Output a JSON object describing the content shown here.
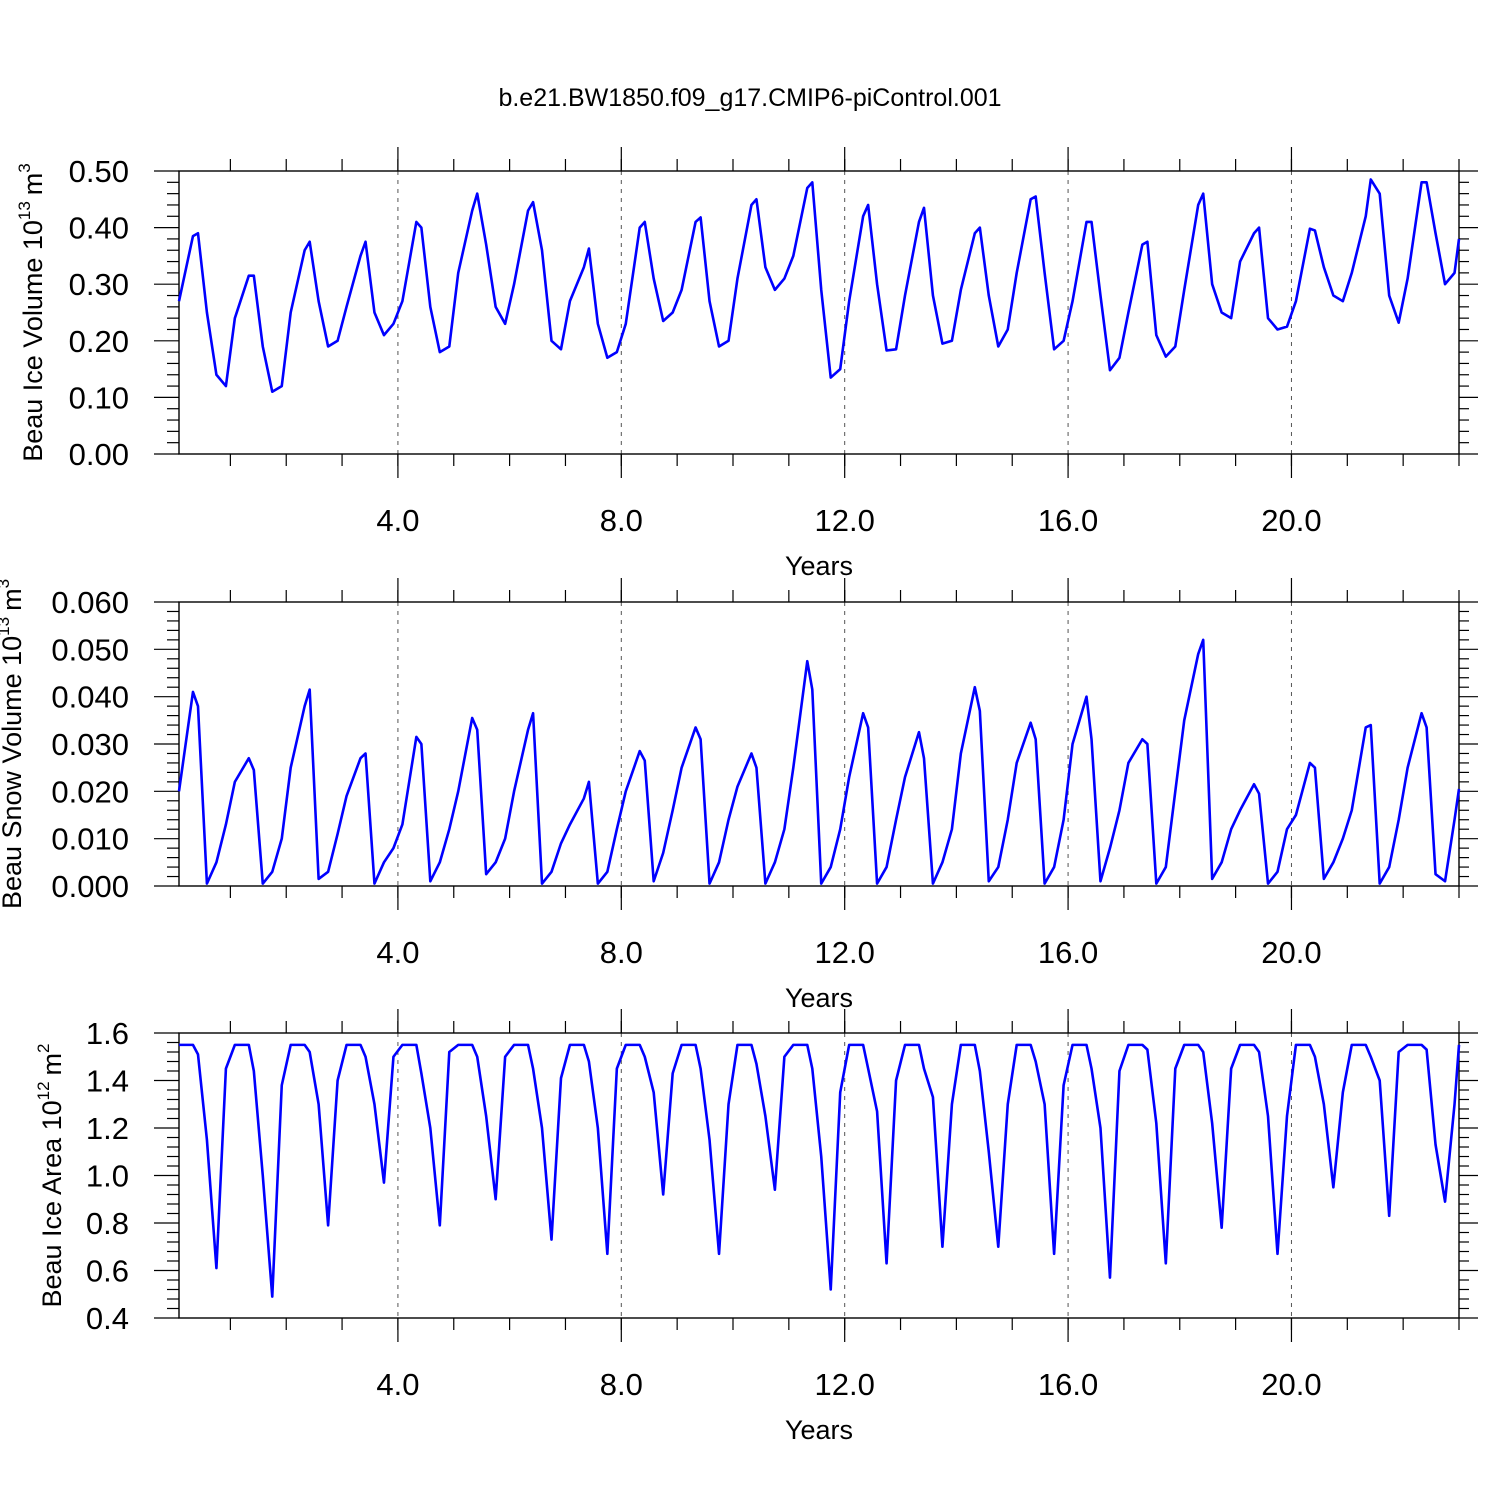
{
  "chart_data": [
    {
      "type": "line",
      "title": "b.e21.BW1850.f09_g17.CMIP6-piControl.001",
      "ylabel": [
        "Beau Ice Volume 10",
        "13",
        "m",
        "3"
      ],
      "xlabel": "Years",
      "color": "#0000ff",
      "xlim": [
        0.08,
        23
      ],
      "ylim": [
        0,
        0.5
      ],
      "xticks": [
        {
          "value": 4,
          "label": "4.0"
        },
        {
          "value": 8,
          "label": "8.0"
        },
        {
          "value": 12,
          "label": "12.0"
        },
        {
          "value": 16,
          "label": "16.0"
        },
        {
          "value": 20,
          "label": "20.0"
        }
      ],
      "yticks": [
        {
          "value": 0,
          "label": "0.00"
        },
        {
          "value": 0.1,
          "label": "0.10"
        },
        {
          "value": 0.2,
          "label": "0.20"
        },
        {
          "value": 0.3,
          "label": "0.30"
        },
        {
          "value": 0.4,
          "label": "0.40"
        },
        {
          "value": 0.5,
          "label": "0.50"
        }
      ],
      "grid": "x",
      "x": [
        0.08,
        0.33,
        0.42,
        0.58,
        0.75,
        0.92,
        1.08,
        1.33,
        1.42,
        1.58,
        1.75,
        1.92,
        2.08,
        2.33,
        2.42,
        2.58,
        2.75,
        2.92,
        3.08,
        3.33,
        3.42,
        3.58,
        3.75,
        3.92,
        4.08,
        4.33,
        4.42,
        4.58,
        4.75,
        4.92,
        5.08,
        5.33,
        5.42,
        5.58,
        5.75,
        5.92,
        6.08,
        6.33,
        6.42,
        6.58,
        6.75,
        6.92,
        7.08,
        7.33,
        7.42,
        7.58,
        7.75,
        7.92,
        8.08,
        8.33,
        8.42,
        8.58,
        8.75,
        8.92,
        9.08,
        9.33,
        9.42,
        9.58,
        9.75,
        9.92,
        10.08,
        10.33,
        10.42,
        10.58,
        10.75,
        10.92,
        11.08,
        11.33,
        11.42,
        11.58,
        11.75,
        11.92,
        12.08,
        12.33,
        12.42,
        12.58,
        12.75,
        12.92,
        13.08,
        13.33,
        13.42,
        13.58,
        13.75,
        13.92,
        14.08,
        14.33,
        14.42,
        14.58,
        14.75,
        14.92,
        15.08,
        15.33,
        15.42,
        15.58,
        15.75,
        15.92,
        16.08,
        16.33,
        16.42,
        16.58,
        16.75,
        16.92,
        17.08,
        17.33,
        17.42,
        17.58,
        17.75,
        17.92,
        18.08,
        18.33,
        18.42,
        18.58,
        18.75,
        18.92,
        19.08,
        19.33,
        19.42,
        19.58,
        19.75,
        19.92,
        20.08,
        20.33,
        20.42,
        20.58,
        20.75,
        20.92,
        21.08,
        21.33,
        21.42,
        21.58,
        21.75,
        21.92,
        22.08,
        22.33,
        22.42,
        22.58,
        22.75,
        22.92,
        23
      ],
      "values": [
        0.27,
        0.385,
        0.39,
        0.25,
        0.14,
        0.12,
        0.24,
        0.315,
        0.315,
        0.19,
        0.11,
        0.12,
        0.25,
        0.36,
        0.375,
        0.27,
        0.19,
        0.2,
        0.26,
        0.35,
        0.375,
        0.25,
        0.21,
        0.23,
        0.27,
        0.41,
        0.4,
        0.26,
        0.18,
        0.19,
        0.32,
        0.43,
        0.46,
        0.37,
        0.26,
        0.23,
        0.3,
        0.43,
        0.445,
        0.36,
        0.2,
        0.185,
        0.27,
        0.33,
        0.363,
        0.23,
        0.17,
        0.18,
        0.23,
        0.4,
        0.41,
        0.31,
        0.235,
        0.25,
        0.29,
        0.41,
        0.418,
        0.27,
        0.19,
        0.2,
        0.31,
        0.44,
        0.45,
        0.33,
        0.29,
        0.31,
        0.35,
        0.47,
        0.48,
        0.29,
        0.135,
        0.15,
        0.27,
        0.42,
        0.44,
        0.3,
        0.183,
        0.185,
        0.28,
        0.41,
        0.435,
        0.28,
        0.195,
        0.2,
        0.29,
        0.39,
        0.4,
        0.28,
        0.19,
        0.22,
        0.32,
        0.45,
        0.455,
        0.32,
        0.185,
        0.2,
        0.27,
        0.41,
        0.41,
        0.28,
        0.148,
        0.17,
        0.25,
        0.37,
        0.375,
        0.21,
        0.172,
        0.19,
        0.29,
        0.44,
        0.46,
        0.3,
        0.25,
        0.24,
        0.34,
        0.39,
        0.4,
        0.24,
        0.22,
        0.225,
        0.27,
        0.398,
        0.395,
        0.33,
        0.28,
        0.27,
        0.32,
        0.42,
        0.485,
        0.46,
        0.28,
        0.232,
        0.31,
        0.48,
        0.48,
        0.39,
        0.3,
        0.32,
        0.38
      ]
    },
    {
      "type": "line",
      "ylabel": [
        "Beau Snow Volume 10",
        "13",
        "m",
        "3"
      ],
      "xlabel": "Years",
      "color": "#0000ff",
      "xlim": [
        0.08,
        23
      ],
      "ylim": [
        0,
        0.06
      ],
      "xticks": [
        {
          "value": 4,
          "label": "4.0"
        },
        {
          "value": 8,
          "label": "8.0"
        },
        {
          "value": 12,
          "label": "12.0"
        },
        {
          "value": 16,
          "label": "16.0"
        },
        {
          "value": 20,
          "label": "20.0"
        }
      ],
      "yticks": [
        {
          "value": 0,
          "label": "0.000"
        },
        {
          "value": 0.01,
          "label": "0.010"
        },
        {
          "value": 0.02,
          "label": "0.020"
        },
        {
          "value": 0.03,
          "label": "0.030"
        },
        {
          "value": 0.04,
          "label": "0.040"
        },
        {
          "value": 0.05,
          "label": "0.050"
        },
        {
          "value": 0.06,
          "label": "0.060"
        }
      ],
      "grid": "x",
      "x": [
        0.08,
        0.33,
        0.42,
        0.58,
        0.75,
        0.92,
        1.08,
        1.33,
        1.42,
        1.58,
        1.75,
        1.92,
        2.08,
        2.33,
        2.42,
        2.58,
        2.75,
        2.92,
        3.08,
        3.33,
        3.42,
        3.58,
        3.75,
        3.92,
        4.08,
        4.33,
        4.42,
        4.58,
        4.75,
        4.92,
        5.08,
        5.33,
        5.42,
        5.58,
        5.75,
        5.92,
        6.08,
        6.33,
        6.42,
        6.58,
        6.75,
        6.92,
        7.08,
        7.33,
        7.42,
        7.58,
        7.75,
        7.92,
        8.08,
        8.33,
        8.42,
        8.58,
        8.75,
        8.92,
        9.08,
        9.33,
        9.42,
        9.58,
        9.75,
        9.92,
        10.08,
        10.33,
        10.42,
        10.58,
        10.75,
        10.92,
        11.08,
        11.33,
        11.42,
        11.58,
        11.75,
        11.92,
        12.08,
        12.33,
        12.42,
        12.58,
        12.75,
        12.92,
        13.08,
        13.33,
        13.42,
        13.58,
        13.75,
        13.92,
        14.08,
        14.33,
        14.42,
        14.58,
        14.75,
        14.92,
        15.08,
        15.33,
        15.42,
        15.58,
        15.75,
        15.92,
        16.08,
        16.33,
        16.42,
        16.58,
        16.75,
        16.92,
        17.08,
        17.33,
        17.42,
        17.58,
        17.75,
        17.92,
        18.08,
        18.33,
        18.42,
        18.58,
        18.75,
        18.92,
        19.08,
        19.33,
        19.42,
        19.58,
        19.75,
        19.92,
        20.08,
        20.33,
        20.42,
        20.58,
        20.75,
        20.92,
        21.08,
        21.33,
        21.42,
        21.58,
        21.75,
        21.92,
        22.08,
        22.33,
        22.42,
        22.58,
        22.75,
        22.92,
        23
      ],
      "values": [
        0.02,
        0.041,
        0.038,
        0.0005,
        0.005,
        0.013,
        0.022,
        0.027,
        0.0245,
        0.0005,
        0.003,
        0.01,
        0.025,
        0.038,
        0.0415,
        0.0015,
        0.003,
        0.011,
        0.019,
        0.027,
        0.028,
        0.0005,
        0.005,
        0.008,
        0.013,
        0.0315,
        0.03,
        0.001,
        0.005,
        0.012,
        0.02,
        0.0355,
        0.033,
        0.0025,
        0.005,
        0.01,
        0.02,
        0.033,
        0.0365,
        0.0005,
        0.003,
        0.009,
        0.013,
        0.0185,
        0.022,
        0.0005,
        0.003,
        0.012,
        0.02,
        0.0285,
        0.0265,
        0.001,
        0.007,
        0.016,
        0.025,
        0.0335,
        0.031,
        0.0005,
        0.005,
        0.014,
        0.021,
        0.028,
        0.025,
        0.0005,
        0.005,
        0.012,
        0.025,
        0.0475,
        0.0415,
        0.0005,
        0.004,
        0.012,
        0.023,
        0.0365,
        0.0335,
        0.0005,
        0.004,
        0.014,
        0.023,
        0.0325,
        0.027,
        0.0005,
        0.005,
        0.012,
        0.028,
        0.042,
        0.037,
        0.001,
        0.004,
        0.014,
        0.026,
        0.0345,
        0.031,
        0.0005,
        0.004,
        0.014,
        0.03,
        0.04,
        0.031,
        0.001,
        0.008,
        0.016,
        0.026,
        0.031,
        0.03,
        0.0005,
        0.004,
        0.02,
        0.035,
        0.049,
        0.052,
        0.0015,
        0.005,
        0.012,
        0.016,
        0.0215,
        0.0195,
        0.0005,
        0.003,
        0.012,
        0.015,
        0.026,
        0.025,
        0.0015,
        0.005,
        0.01,
        0.016,
        0.0335,
        0.034,
        0.0005,
        0.004,
        0.014,
        0.025,
        0.0365,
        0.0335,
        0.0025,
        0.001,
        0.014,
        0.0205
      ]
    },
    {
      "type": "line",
      "ylabel": [
        "Beau Ice Area 10",
        "12",
        "m",
        "2"
      ],
      "xlabel": "Years",
      "color": "#0000ff",
      "xlim": [
        0.08,
        23
      ],
      "ylim": [
        0.4,
        1.6
      ],
      "xticks": [
        {
          "value": 4,
          "label": "4.0"
        },
        {
          "value": 8,
          "label": "8.0"
        },
        {
          "value": 12,
          "label": "12.0"
        },
        {
          "value": 16,
          "label": "16.0"
        },
        {
          "value": 20,
          "label": "20.0"
        }
      ],
      "yticks": [
        0.4,
        0.6,
        0.8,
        {
          "value": 1,
          "label": "1.0"
        },
        1.2,
        1.4,
        1.6
      ],
      "grid": "x",
      "x": [
        0.08,
        0.33,
        0.42,
        0.58,
        0.75,
        0.92,
        1.08,
        1.33,
        1.42,
        1.58,
        1.75,
        1.92,
        2.08,
        2.33,
        2.42,
        2.58,
        2.75,
        2.92,
        3.08,
        3.33,
        3.42,
        3.58,
        3.75,
        3.92,
        4.08,
        4.33,
        4.42,
        4.58,
        4.75,
        4.92,
        5.08,
        5.33,
        5.42,
        5.58,
        5.75,
        5.92,
        6.08,
        6.33,
        6.42,
        6.58,
        6.75,
        6.92,
        7.08,
        7.33,
        7.42,
        7.58,
        7.75,
        7.92,
        8.08,
        8.33,
        8.42,
        8.58,
        8.75,
        8.92,
        9.08,
        9.33,
        9.42,
        9.58,
        9.75,
        9.92,
        10.08,
        10.33,
        10.42,
        10.58,
        10.75,
        10.92,
        11.08,
        11.33,
        11.42,
        11.58,
        11.75,
        11.92,
        12.08,
        12.33,
        12.42,
        12.58,
        12.75,
        12.92,
        13.08,
        13.33,
        13.42,
        13.58,
        13.75,
        13.92,
        14.08,
        14.33,
        14.42,
        14.58,
        14.75,
        14.92,
        15.08,
        15.33,
        15.42,
        15.58,
        15.75,
        15.92,
        16.08,
        16.33,
        16.42,
        16.58,
        16.75,
        16.92,
        17.08,
        17.33,
        17.42,
        17.58,
        17.75,
        17.92,
        18.08,
        18.33,
        18.42,
        18.58,
        18.75,
        18.92,
        19.08,
        19.33,
        19.42,
        19.58,
        19.75,
        19.92,
        20.08,
        20.33,
        20.42,
        20.58,
        20.75,
        20.92,
        21.08,
        21.33,
        21.42,
        21.58,
        21.75,
        21.92,
        22.08,
        22.33,
        22.42,
        22.58,
        22.75,
        22.92,
        23
      ],
      "values": [
        1.55,
        1.55,
        1.51,
        1.15,
        0.61,
        1.45,
        1.55,
        1.55,
        1.44,
        1.0,
        0.49,
        1.38,
        1.55,
        1.55,
        1.52,
        1.3,
        0.79,
        1.4,
        1.55,
        1.55,
        1.5,
        1.3,
        0.97,
        1.5,
        1.55,
        1.55,
        1.43,
        1.2,
        0.79,
        1.52,
        1.55,
        1.55,
        1.5,
        1.25,
        0.9,
        1.5,
        1.55,
        1.55,
        1.45,
        1.2,
        0.73,
        1.41,
        1.55,
        1.55,
        1.48,
        1.2,
        0.67,
        1.45,
        1.55,
        1.55,
        1.5,
        1.35,
        0.92,
        1.43,
        1.55,
        1.55,
        1.45,
        1.15,
        0.67,
        1.3,
        1.55,
        1.55,
        1.47,
        1.25,
        0.94,
        1.5,
        1.55,
        1.55,
        1.45,
        1.08,
        0.52,
        1.35,
        1.55,
        1.55,
        1.45,
        1.27,
        0.63,
        1.4,
        1.55,
        1.55,
        1.45,
        1.33,
        0.7,
        1.3,
        1.55,
        1.55,
        1.44,
        1.1,
        0.7,
        1.3,
        1.55,
        1.55,
        1.48,
        1.3,
        0.67,
        1.38,
        1.55,
        1.55,
        1.45,
        1.2,
        0.57,
        1.44,
        1.55,
        1.55,
        1.53,
        1.22,
        0.63,
        1.45,
        1.55,
        1.55,
        1.52,
        1.22,
        0.78,
        1.45,
        1.55,
        1.55,
        1.52,
        1.25,
        0.67,
        1.25,
        1.55,
        1.55,
        1.5,
        1.3,
        0.95,
        1.35,
        1.55,
        1.55,
        1.5,
        1.4,
        0.83,
        1.52,
        1.55,
        1.55,
        1.53,
        1.13,
        0.89,
        1.3,
        1.55
      ]
    }
  ]
}
